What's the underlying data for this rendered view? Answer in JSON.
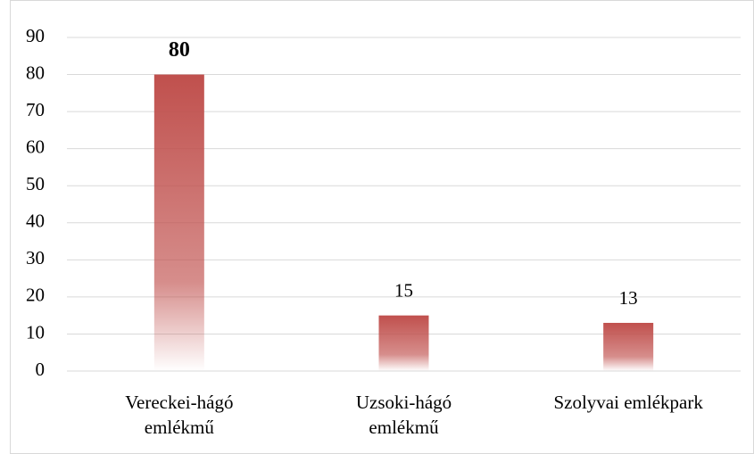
{
  "chart_data": {
    "type": "bar",
    "categories": [
      [
        "Vereckei-hágó",
        "emlékmű"
      ],
      [
        "Uzsoki-hágó",
        "emlékmű"
      ],
      [
        "Szolyvai emlékpark"
      ]
    ],
    "values": [
      80,
      15,
      13
    ],
    "bold_value_labels": [
      true,
      false,
      false
    ],
    "color": "#c0504d",
    "ylim": [
      0,
      90
    ],
    "yticks": [
      0,
      10,
      20,
      30,
      40,
      50,
      60,
      70,
      80,
      90
    ],
    "grid": true
  }
}
